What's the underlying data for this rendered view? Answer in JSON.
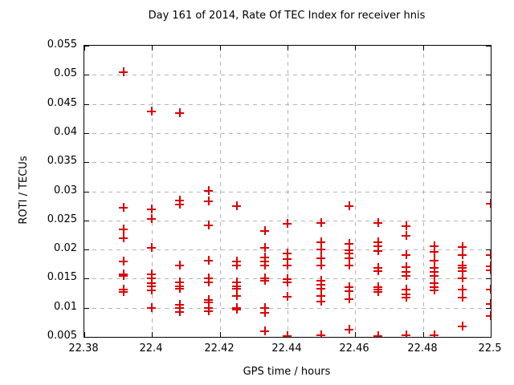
{
  "figure": {
    "title": "Day 161 of 2014, Rate Of TEC Index for receiver hnis",
    "background_color": "#ffffff",
    "frame_color": "#000000",
    "grid_color": "#b4b4b4"
  },
  "chart_data": {
    "type": "scatter",
    "title": "Day 161 of 2014, Rate Of TEC Index for receiver hnis",
    "xlabel": "GPS time / hours",
    "ylabel": "ROTI / TECUs",
    "xlim": [
      22.38,
      22.5
    ],
    "ylim": [
      0.005,
      0.055
    ],
    "grid": true,
    "legend": "none",
    "marker": "plus",
    "marker_color": "#dd0000",
    "xticks": [
      {
        "value": 22.38,
        "label": "22.38"
      },
      {
        "value": 22.4,
        "label": "22.4"
      },
      {
        "value": 22.42,
        "label": "22.42"
      },
      {
        "value": 22.44,
        "label": "22.44"
      },
      {
        "value": 22.46,
        "label": "22.46"
      },
      {
        "value": 22.48,
        "label": "22.48"
      },
      {
        "value": 22.5,
        "label": "22.5"
      }
    ],
    "yticks": [
      {
        "value": 0.005,
        "label": "0.005"
      },
      {
        "value": 0.01,
        "label": "0.01"
      },
      {
        "value": 0.015,
        "label": "0.015"
      },
      {
        "value": 0.02,
        "label": "0.02"
      },
      {
        "value": 0.025,
        "label": "0.025"
      },
      {
        "value": 0.03,
        "label": "0.03"
      },
      {
        "value": 0.035,
        "label": "0.035"
      },
      {
        "value": 0.04,
        "label": "0.04"
      },
      {
        "value": 0.045,
        "label": "0.045"
      },
      {
        "value": 0.05,
        "label": "0.05"
      },
      {
        "value": 0.055,
        "label": "0.055"
      }
    ],
    "series": [
      {
        "name": "ROTI",
        "clusters": [
          {
            "x": 22.3917,
            "y": [
              0.0505,
              0.0272,
              0.0234,
              0.022,
              0.0179,
              0.0158,
              0.0155,
              0.0131,
              0.0127
            ]
          },
          {
            "x": 22.4,
            "y": [
              0.0437,
              0.0269,
              0.0253,
              0.0203,
              0.0157,
              0.0151,
              0.0142,
              0.0137,
              0.013,
              0.01
            ]
          },
          {
            "x": 22.4083,
            "y": [
              0.0434,
              0.0284,
              0.0277,
              0.0172,
              0.0143,
              0.0137,
              0.0132,
              0.0105,
              0.0099,
              0.0093
            ]
          },
          {
            "x": 22.4167,
            "y": [
              0.0301,
              0.0283,
              0.0242,
              0.0181,
              0.015,
              0.0144,
              0.0114,
              0.0109,
              0.01,
              0.0094
            ]
          },
          {
            "x": 22.425,
            "y": [
              0.0275,
              0.0179,
              0.0172,
              0.0143,
              0.0137,
              0.0132,
              0.012,
              0.0099,
              0.0097
            ]
          },
          {
            "x": 22.4333,
            "y": [
              0.0232,
              0.0203,
              0.0186,
              0.0179,
              0.0172,
              0.015,
              0.0146,
              0.0099,
              0.0092,
              0.006
            ]
          },
          {
            "x": 22.44,
            "y": [
              0.0244,
              0.0193,
              0.0184,
              0.0172,
              0.0149,
              0.0143,
              0.0119,
              0.0052
            ]
          },
          {
            "x": 22.45,
            "y": [
              0.0246,
              0.0212,
              0.02,
              0.0185,
              0.0172,
              0.0147,
              0.014,
              0.0133,
              0.012,
              0.011,
              0.0053
            ]
          },
          {
            "x": 22.4583,
            "y": [
              0.0275,
              0.021,
              0.0199,
              0.0193,
              0.0185,
              0.0172,
              0.0136,
              0.0128,
              0.0115,
              0.0062
            ]
          },
          {
            "x": 22.4667,
            "y": [
              0.0246,
              0.0213,
              0.0206,
              0.0198,
              0.0169,
              0.0163,
              0.0136,
              0.0131,
              0.0127,
              0.0052
            ]
          },
          {
            "x": 22.475,
            "y": [
              0.024,
              0.0223,
              0.0191,
              0.017,
              0.0161,
              0.0154,
              0.0131,
              0.0123,
              0.0118,
              0.0053
            ]
          },
          {
            "x": 22.4833,
            "y": [
              0.0206,
              0.0196,
              0.0181,
              0.0168,
              0.0161,
              0.0154,
              0.0142,
              0.0136,
              0.013,
              0.0053
            ]
          },
          {
            "x": 22.4917,
            "y": [
              0.0204,
              0.019,
              0.0173,
              0.0168,
              0.0163,
              0.0151,
              0.0131,
              0.0118,
              0.0068
            ]
          },
          {
            "x": 22.5,
            "y": [
              0.0279,
              0.019,
              0.0171,
              0.0164,
              0.0131,
              0.0107,
              0.0086
            ]
          }
        ]
      }
    ]
  }
}
